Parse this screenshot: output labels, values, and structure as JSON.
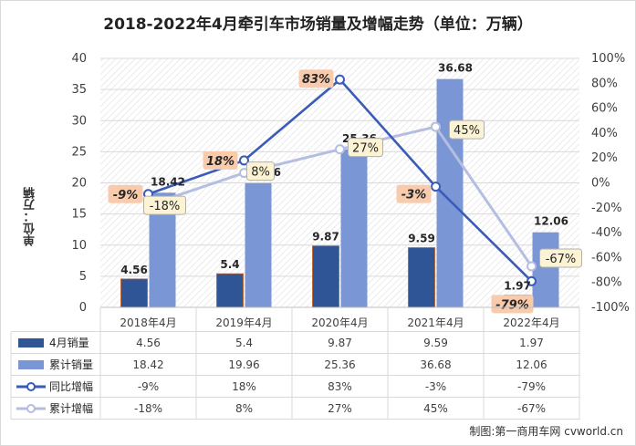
{
  "chart_data": {
    "type": "bar",
    "title": "2018-2022年4月牵引车市场销量及增幅走势（单位：万辆）",
    "ylabel": "单位：万辆",
    "categories": [
      "2018年4月",
      "2019年4月",
      "2020年4月",
      "2021年4月",
      "2022年4月"
    ],
    "ylim": [
      0,
      40
    ],
    "y_ticks": [
      "0",
      "5",
      "10",
      "15",
      "20",
      "25",
      "30",
      "35",
      "40"
    ],
    "y2lim": [
      -100,
      100
    ],
    "y2_ticks": [
      "-100%",
      "-80%",
      "-60%",
      "-40%",
      "-20%",
      "0%",
      "20%",
      "40%",
      "60%",
      "80%",
      "100%"
    ],
    "series": [
      {
        "name": "4月销量",
        "type": "bar",
        "axis": "left",
        "color": "#2f5597",
        "values": [
          4.56,
          5.4,
          9.87,
          9.59,
          1.97
        ],
        "labels": [
          "4.56",
          "5.4",
          "9.87",
          "9.59",
          "1.97"
        ],
        "table": [
          "4.56",
          "5.4",
          "9.87",
          "9.59",
          "1.97"
        ]
      },
      {
        "name": "累计销量",
        "type": "bar",
        "axis": "left",
        "color": "#7b96d4",
        "values": [
          18.42,
          19.96,
          25.36,
          36.68,
          12.06
        ],
        "labels": [
          "18.42",
          "19.96",
          "25.36",
          "36.68",
          "12.06"
        ],
        "table": [
          "18.42",
          "19.96",
          "25.36",
          "36.68",
          "12.06"
        ]
      },
      {
        "name": "同比增幅",
        "type": "line",
        "axis": "right",
        "color": "#3a5bb8",
        "values": [
          -9,
          18,
          83,
          -3,
          -79
        ],
        "labels": [
          "-9%",
          "18%",
          "83%",
          "-3%",
          "-79%"
        ],
        "table": [
          "-9%",
          "18%",
          "83%",
          "-3%",
          "-79%"
        ]
      },
      {
        "name": "累计增幅",
        "type": "line",
        "axis": "right",
        "color": "#b4bee0",
        "values": [
          -18,
          8,
          27,
          45,
          -67
        ],
        "labels": [
          "-18%",
          "8%",
          "27%",
          "45%",
          "-67%"
        ],
        "table": [
          "-18%",
          "8%",
          "27%",
          "45%",
          "-67%"
        ]
      }
    ],
    "legend": "data-table"
  },
  "source": "制图:第一商用车网 cvworld.cn"
}
